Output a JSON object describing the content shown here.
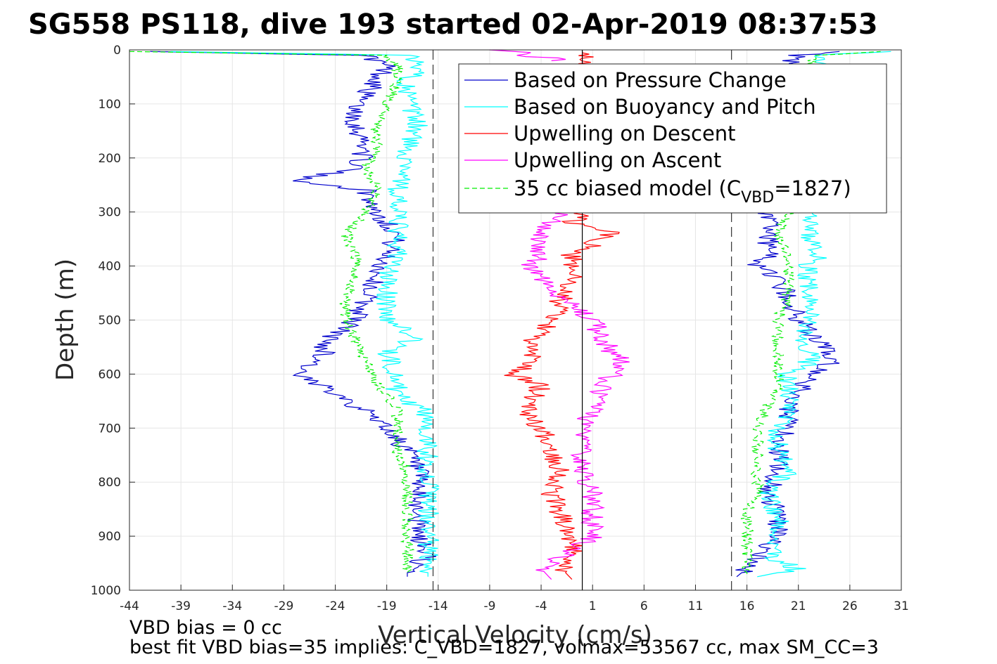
{
  "chart_data": {
    "type": "line",
    "title": "SG558 PS118, dive 193 started 02-Apr-2019 08:37:53",
    "xlabel": "Vertical Velocity (cm/s)",
    "ylabel": "Depth (m)",
    "xlim": [
      -44,
      31
    ],
    "ylim": [
      0,
      1000
    ],
    "y_reversed": true,
    "grid": true,
    "xticks": [
      -44,
      -39,
      -34,
      -29,
      -24,
      -19,
      -14,
      -9,
      -4,
      1,
      6,
      11,
      16,
      21,
      26,
      31
    ],
    "yticks": [
      0,
      100,
      200,
      300,
      400,
      500,
      600,
      700,
      800,
      900,
      1000
    ],
    "xtick_labels": [
      "-44",
      "-39",
      "-34",
      "-29",
      "-24",
      "-19",
      "-14",
      "-9",
      "-4",
      "1",
      "6",
      "11",
      "16",
      "21",
      "26",
      "31"
    ],
    "ytick_labels": [
      "0",
      "100",
      "200",
      "300",
      "400",
      "500",
      "600",
      "700",
      "800",
      "900",
      "1000"
    ],
    "legend_position": "top-right",
    "reference_lines": [
      {
        "x": -14.5,
        "style": "dashed",
        "color": "#333333"
      },
      {
        "x": 14.5,
        "style": "dashed",
        "color": "#333333"
      },
      {
        "x": 0,
        "style": "solid",
        "color": "#000000"
      }
    ],
    "series": [
      {
        "name": "Based on Pressure Change",
        "color": "#0000cc",
        "descent": {
          "depth": [
            3,
            10,
            30,
            60,
            100,
            140,
            180,
            220,
            240,
            260,
            300,
            340,
            380,
            420,
            460,
            500,
            540,
            560,
            580,
            600,
            610,
            640,
            660,
            680,
            700,
            740,
            780,
            820,
            860,
            900,
            940,
            960,
            975
          ],
          "velocity": [
            -42,
            -21,
            -19,
            -20,
            -22,
            -22,
            -21,
            -22,
            -28,
            -21,
            -20,
            -18,
            -19,
            -20,
            -21,
            -22,
            -25,
            -25,
            -26,
            -28,
            -27,
            -23,
            -22,
            -20,
            -19,
            -17,
            -16,
            -16,
            -16,
            -16,
            -15,
            -17,
            -17
          ]
        },
        "ascent": {
          "depth": [
            975,
            960,
            940,
            900,
            860,
            820,
            780,
            740,
            700,
            660,
            640,
            600,
            580,
            560,
            540,
            500,
            460,
            420,
            400,
            380,
            340,
            320,
            300,
            260,
            180,
            100,
            60,
            30,
            10,
            3
          ],
          "velocity": [
            15,
            16,
            17,
            19,
            19,
            18,
            19,
            19,
            20,
            20,
            21,
            22,
            24,
            24,
            23,
            21,
            20,
            19,
            17,
            18,
            18,
            18,
            18,
            19,
            19,
            20,
            20,
            20,
            21,
            25
          ]
        }
      },
      {
        "name": "Based on Buoyancy and Pitch",
        "color": "#00ffff",
        "descent": {
          "depth": [
            3,
            10,
            30,
            60,
            100,
            140,
            180,
            220,
            260,
            300,
            340,
            380,
            420,
            460,
            500,
            530,
            560,
            600,
            640,
            660,
            680,
            700,
            740,
            780,
            820,
            860,
            900,
            940,
            960,
            975
          ],
          "velocity": [
            -40,
            -17,
            -16,
            -17,
            -17,
            -16,
            -17,
            -17,
            -18,
            -18,
            -18,
            -18,
            -19,
            -19,
            -19,
            -16,
            -19,
            -18,
            -18,
            -16,
            -15,
            -15,
            -15,
            -15,
            -15,
            -15,
            -15,
            -15,
            -15,
            -15
          ]
        },
        "ascent": {
          "depth": [
            975,
            960,
            940,
            900,
            860,
            820,
            780,
            740,
            700,
            660,
            640,
            600,
            580,
            560,
            540,
            500,
            460,
            420,
            400,
            380,
            340,
            320,
            300,
            260,
            180,
            100,
            60,
            30,
            10,
            3
          ],
          "velocity": [
            17,
            21,
            18,
            19,
            19,
            18,
            20,
            19,
            19,
            20,
            20,
            20,
            22,
            22,
            21,
            22,
            22,
            22,
            22,
            23,
            22,
            22,
            22,
            22,
            22,
            22,
            23,
            23,
            23,
            30
          ]
        }
      },
      {
        "name": "Upwelling on Descent",
        "color": "#ff0000",
        "descent": {
          "depth": [
            3,
            300,
            320,
            340,
            380,
            420,
            460,
            500,
            540,
            580,
            600,
            620,
            660,
            680,
            700,
            740,
            780,
            820,
            860,
            900,
            940,
            960,
            980
          ],
          "velocity": [
            0,
            0,
            -1,
            3,
            -1,
            -1,
            -2,
            -3,
            -5,
            -5,
            -7,
            -4,
            -5,
            -5,
            -4,
            -3,
            -2,
            -3,
            -2,
            -1,
            -1,
            -2,
            -1
          ]
        }
      },
      {
        "name": "Upwelling on Ascent",
        "color": "#ff00ff",
        "descent": {
          "depth": [
            980,
            960,
            940,
            900,
            860,
            820,
            780,
            740,
            700,
            660,
            620,
            600,
            580,
            560,
            540,
            500,
            460,
            420,
            400,
            380,
            340,
            320,
            300
          ],
          "velocity": [
            -3,
            -4,
            -2,
            1,
            1,
            1,
            0,
            0,
            0,
            1,
            2,
            3,
            4,
            3,
            2,
            1,
            -2,
            -4,
            -5,
            -4,
            -4,
            -3,
            -2
          ]
        },
        "ascent": {
          "depth": [
            0,
            5,
            10,
            15,
            20
          ],
          "velocity": [
            -9,
            -5,
            -7,
            -2,
            -3
          ]
        }
      },
      {
        "name": "35 cc biased model (C_VBD=1827)",
        "legend_label_parts": [
          "35 cc biased model (C",
          "VBD",
          "=1827)"
        ],
        "color": "#00ee00",
        "style": "dashed",
        "descent": {
          "depth": [
            3,
            10,
            30,
            60,
            100,
            140,
            180,
            220,
            260,
            300,
            340,
            380,
            420,
            460,
            500,
            540,
            580,
            620,
            660,
            700,
            740,
            780,
            820,
            860,
            900,
            940,
            970
          ],
          "velocity": [
            -44,
            -19,
            -18,
            -18,
            -19,
            -20,
            -20,
            -21,
            -20,
            -21,
            -23,
            -22,
            -22,
            -23,
            -23,
            -22,
            -21,
            -20,
            -18,
            -18,
            -18,
            -17,
            -17,
            -17,
            -17,
            -17,
            -17
          ]
        },
        "ascent": {
          "depth": [
            970,
            940,
            900,
            860,
            820,
            780,
            740,
            700,
            660,
            620,
            580,
            540,
            500,
            460,
            420,
            380,
            340,
            300,
            260,
            180,
            100,
            60,
            30,
            10,
            3
          ],
          "velocity": [
            16,
            16,
            16,
            16,
            17,
            17,
            17,
            17,
            18,
            19,
            19,
            19,
            19,
            20,
            20,
            20,
            19,
            20,
            20,
            20,
            21,
            21,
            22,
            23,
            29
          ]
        }
      }
    ],
    "annotations": [
      "VBD bias = 0 cc",
      "best fit VBD bias=35 implies: C_VBD=1827, volmax=53567 cc, max SM_CC=3"
    ]
  }
}
